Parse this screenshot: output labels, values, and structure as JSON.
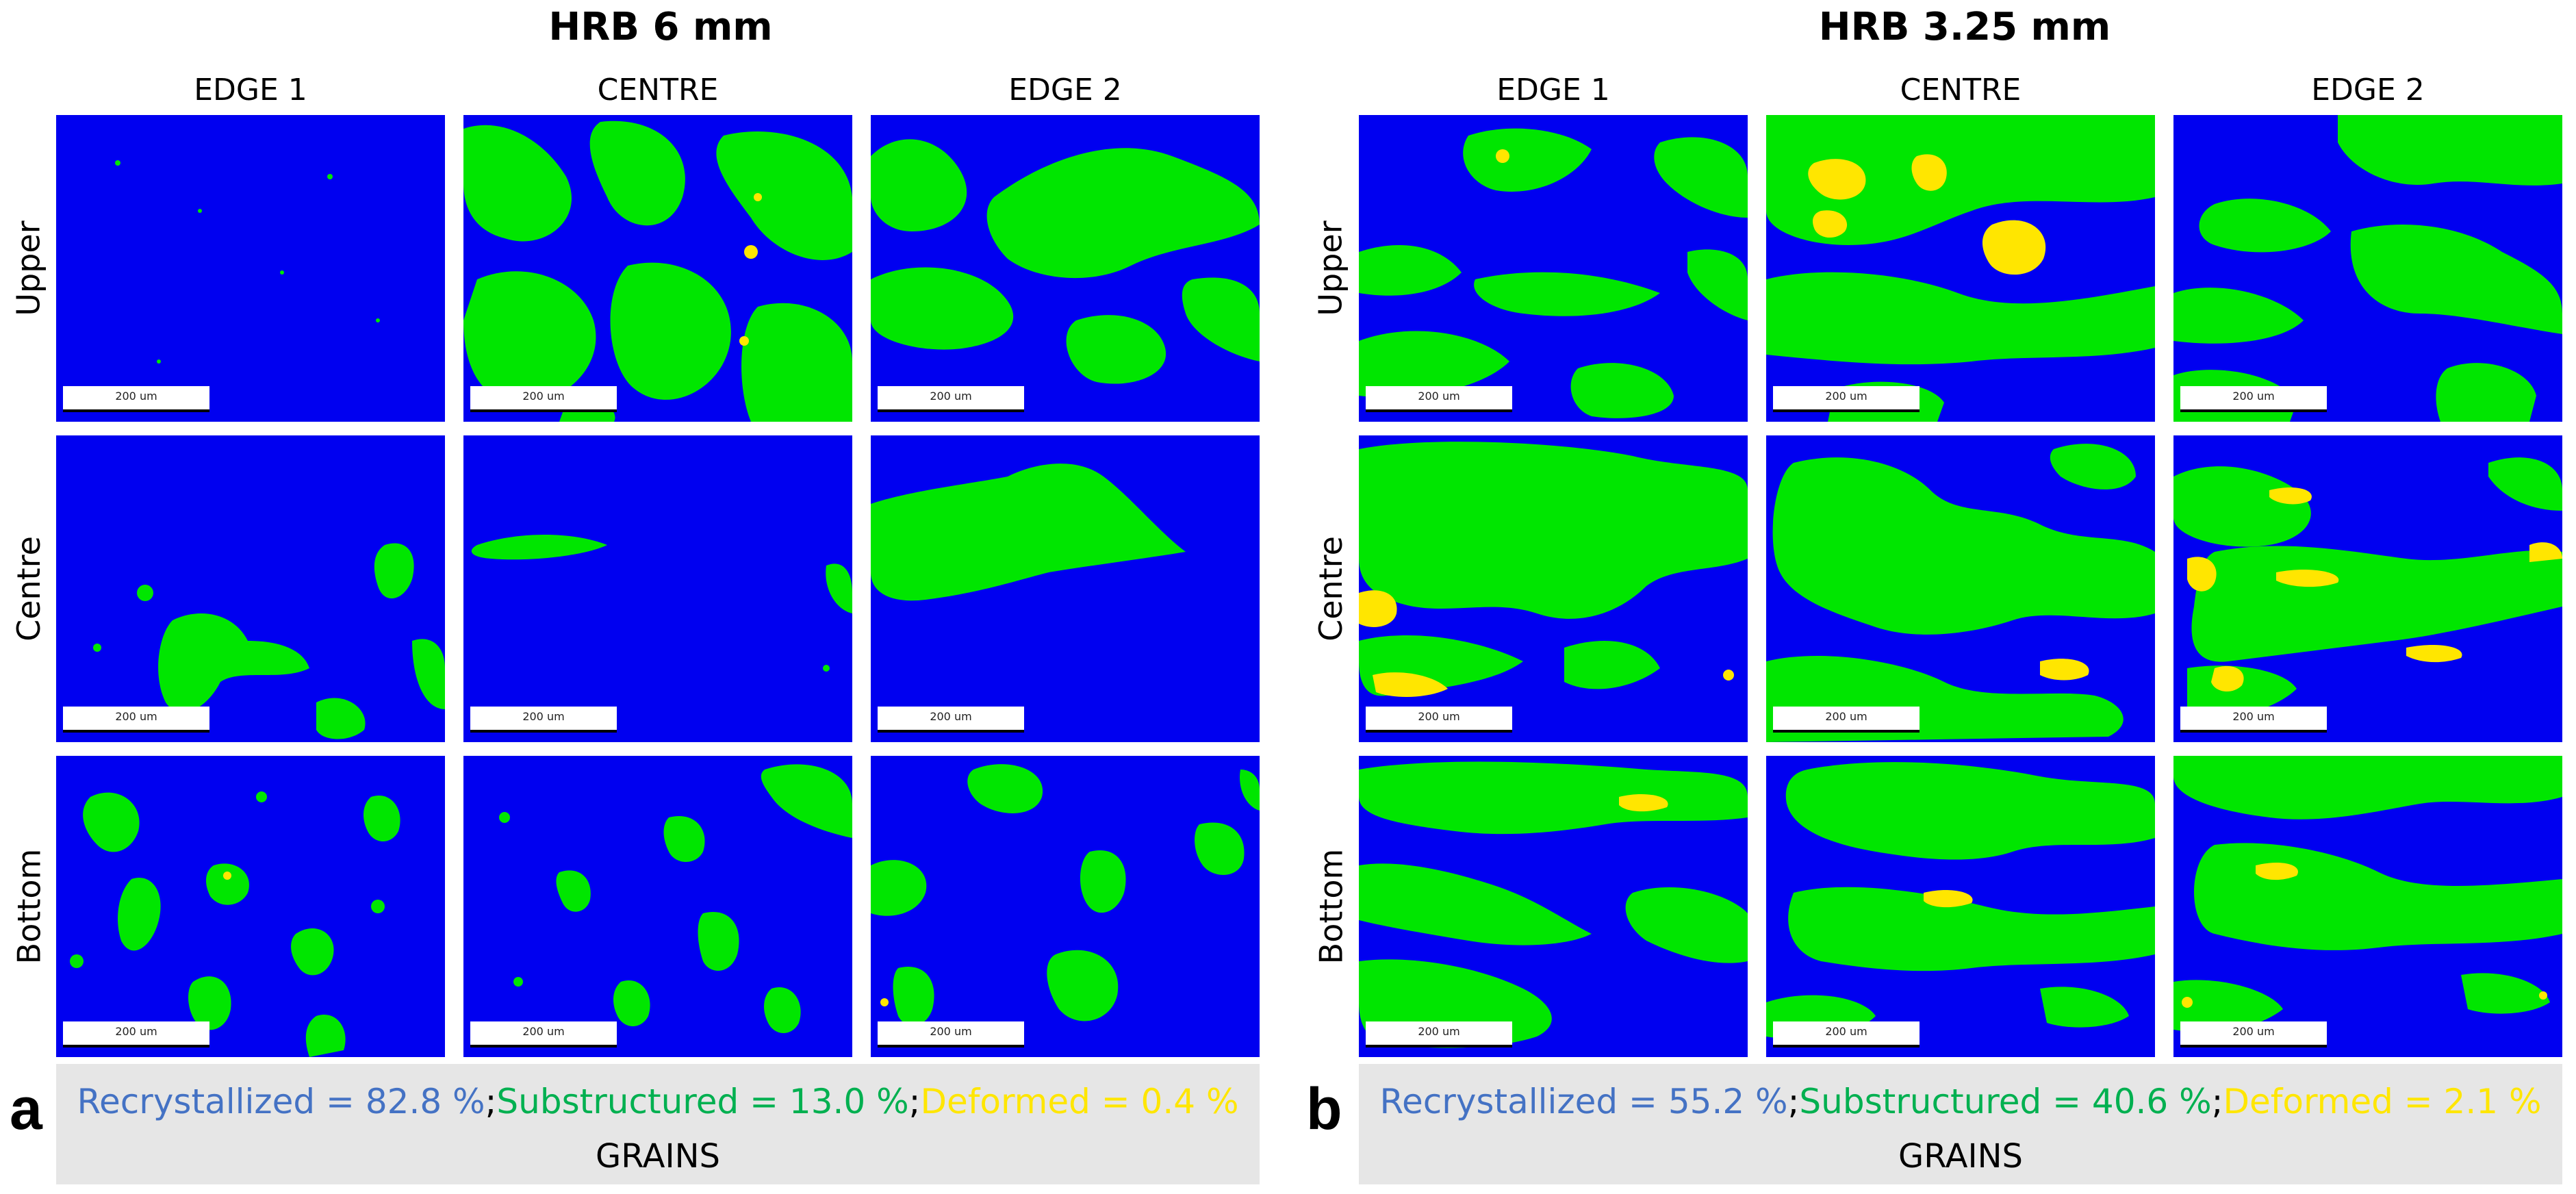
{
  "colors": {
    "recrystallized": "#0000f0",
    "substructured": "#00e600",
    "deformed": "#ffe600",
    "recrystallized_text": "#4472c4",
    "substructured_text": "#00b050",
    "deformed_text": "#ffe600",
    "footer_bg": "#e6e6e6"
  },
  "figures": [
    {
      "id": "a",
      "title": "HRB 6 mm",
      "panel_letter": "a",
      "columns": [
        "EDGE 1",
        "CENTRE",
        "EDGE 2"
      ],
      "rows": [
        "Upper",
        "Centre",
        "Bottom"
      ],
      "scale_label": "200 um",
      "fractions": {
        "recrystallized": "Recrystallized = 82.8 %",
        "substructured": "Substructured = 13.0 %",
        "deformed": "Deformed = 0.4 %",
        "separator": ";"
      },
      "footer_label": "GRAINS"
    },
    {
      "id": "b",
      "title": "HRB 3.25 mm",
      "panel_letter": "b",
      "columns": [
        "EDGE 1",
        "CENTRE",
        "EDGE 2"
      ],
      "rows": [
        "Upper",
        "Centre",
        "Bottom"
      ],
      "scale_label": "200 um",
      "fractions": {
        "recrystallized": "Recrystallized = 55.2 %",
        "substructured": "Substructured = 40.6 %",
        "deformed": "Deformed = 2.1 %",
        "separator": ";"
      },
      "footer_label": "GRAINS"
    }
  ]
}
